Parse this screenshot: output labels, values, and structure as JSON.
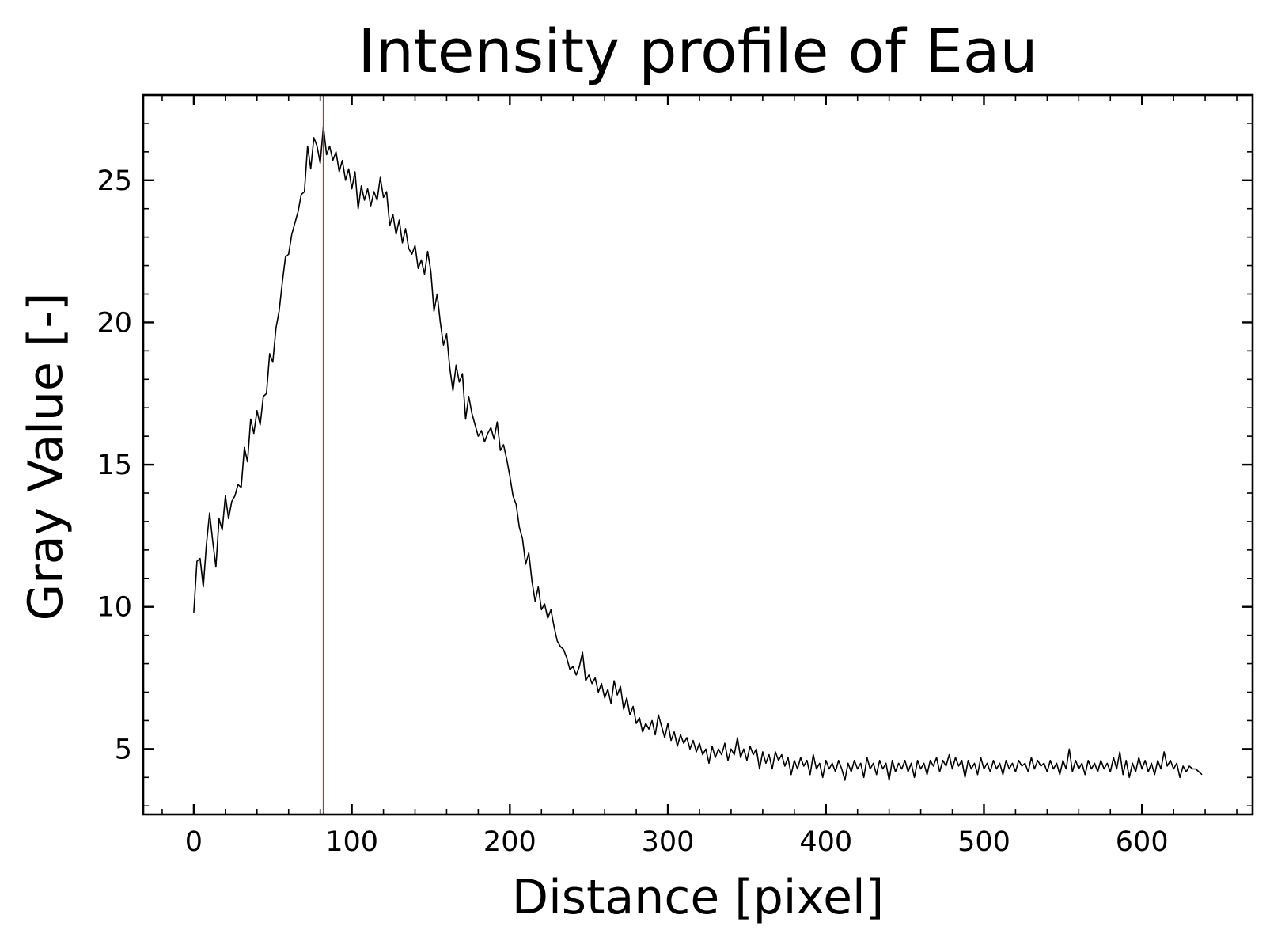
{
  "chart_data": {
    "type": "line",
    "title": "Intensity profile of Eau",
    "xlabel": "Distance [pixel]",
    "ylabel": "Gray Value [-]",
    "xlim": [
      -32,
      670
    ],
    "ylim": [
      2.7,
      28.0
    ],
    "x_ticks": [
      0,
      100,
      200,
      300,
      400,
      500,
      600
    ],
    "x_tick_labels": [
      "0",
      "100",
      "200",
      "300",
      "400",
      "500",
      "600"
    ],
    "x_minor_step": 20,
    "y_ticks": [
      5,
      10,
      15,
      20,
      25
    ],
    "y_tick_labels": [
      "5",
      "10",
      "15",
      "20",
      "25"
    ],
    "y_minor_step": 1,
    "ticks_direction": "in",
    "ticks_on_all_sides": true,
    "grid": false,
    "legend": "none",
    "marker_x": 82,
    "colors": {
      "line": "#000000",
      "marker": "#d62728"
    },
    "series": [
      {
        "profile_points": [
          [
            0,
            9.8
          ],
          [
            2,
            11.6
          ],
          [
            4,
            11.7
          ],
          [
            6,
            10.7
          ],
          [
            8,
            12.2
          ],
          [
            10,
            13.3
          ],
          [
            12,
            12.3
          ],
          [
            14,
            11.4
          ],
          [
            16,
            13.1
          ],
          [
            18,
            12.7
          ],
          [
            20,
            13.9
          ],
          [
            22,
            13.1
          ],
          [
            24,
            13.7
          ],
          [
            26,
            13.9
          ],
          [
            28,
            14.3
          ],
          [
            30,
            14.2
          ],
          [
            32,
            15.6
          ],
          [
            34,
            15.1
          ],
          [
            36,
            16.6
          ],
          [
            38,
            16.1
          ],
          [
            40,
            16.9
          ],
          [
            42,
            16.4
          ],
          [
            44,
            17.4
          ],
          [
            46,
            17.5
          ],
          [
            48,
            18.9
          ],
          [
            50,
            18.6
          ],
          [
            52,
            19.8
          ],
          [
            54,
            20.4
          ],
          [
            56,
            21.4
          ],
          [
            58,
            22.3
          ],
          [
            60,
            22.4
          ],
          [
            62,
            23.1
          ],
          [
            64,
            23.5
          ],
          [
            66,
            23.9
          ],
          [
            68,
            24.5
          ],
          [
            70,
            24.6
          ],
          [
            72,
            26.2
          ],
          [
            74,
            25.4
          ],
          [
            76,
            26.5
          ],
          [
            78,
            26.2
          ],
          [
            80,
            25.6
          ],
          [
            82,
            26.9
          ],
          [
            84,
            25.9
          ],
          [
            86,
            26.2
          ],
          [
            88,
            25.7
          ],
          [
            90,
            26.0
          ],
          [
            92,
            25.3
          ],
          [
            94,
            25.7
          ],
          [
            96,
            25.0
          ],
          [
            98,
            25.4
          ],
          [
            100,
            24.7
          ],
          [
            102,
            25.3
          ],
          [
            104,
            24.0
          ],
          [
            106,
            24.8
          ],
          [
            108,
            24.3
          ],
          [
            110,
            24.7
          ],
          [
            112,
            24.1
          ],
          [
            114,
            24.6
          ],
          [
            116,
            24.3
          ],
          [
            118,
            25.1
          ],
          [
            120,
            24.4
          ],
          [
            122,
            24.6
          ],
          [
            124,
            23.4
          ],
          [
            126,
            23.8
          ],
          [
            128,
            23.1
          ],
          [
            130,
            23.6
          ],
          [
            132,
            22.8
          ],
          [
            134,
            23.3
          ],
          [
            136,
            22.6
          ],
          [
            138,
            22.4
          ],
          [
            140,
            22.7
          ],
          [
            142,
            21.9
          ],
          [
            144,
            22.2
          ],
          [
            146,
            21.7
          ],
          [
            148,
            22.5
          ],
          [
            150,
            21.8
          ],
          [
            152,
            20.4
          ],
          [
            154,
            21.0
          ],
          [
            156,
            20.0
          ],
          [
            158,
            19.2
          ],
          [
            160,
            19.6
          ],
          [
            162,
            18.4
          ],
          [
            164,
            17.6
          ],
          [
            166,
            18.5
          ],
          [
            168,
            17.9
          ],
          [
            170,
            18.2
          ],
          [
            172,
            16.6
          ],
          [
            174,
            17.4
          ],
          [
            176,
            16.8
          ],
          [
            178,
            16.4
          ],
          [
            180,
            16.0
          ],
          [
            182,
            16.2
          ],
          [
            184,
            15.8
          ],
          [
            186,
            16.1
          ],
          [
            188,
            16.3
          ],
          [
            190,
            15.9
          ],
          [
            192,
            16.5
          ],
          [
            194,
            15.5
          ],
          [
            196,
            15.7
          ],
          [
            198,
            15.2
          ],
          [
            200,
            14.6
          ],
          [
            202,
            13.9
          ],
          [
            204,
            13.6
          ],
          [
            206,
            12.8
          ],
          [
            208,
            12.4
          ],
          [
            210,
            11.5
          ],
          [
            212,
            11.9
          ],
          [
            214,
            10.9
          ],
          [
            216,
            10.2
          ],
          [
            218,
            10.7
          ],
          [
            220,
            9.9
          ],
          [
            222,
            10.1
          ],
          [
            224,
            9.6
          ],
          [
            226,
            9.9
          ],
          [
            228,
            9.3
          ],
          [
            230,
            8.8
          ],
          [
            232,
            8.6
          ],
          [
            234,
            8.5
          ],
          [
            236,
            8.2
          ],
          [
            238,
            7.8
          ],
          [
            240,
            7.9
          ],
          [
            242,
            7.6
          ],
          [
            244,
            7.9
          ],
          [
            246,
            8.4
          ],
          [
            248,
            7.4
          ],
          [
            250,
            7.6
          ],
          [
            252,
            7.3
          ],
          [
            254,
            7.5
          ],
          [
            256,
            7.0
          ],
          [
            258,
            7.3
          ],
          [
            260,
            6.8
          ],
          [
            262,
            7.1
          ],
          [
            264,
            6.6
          ],
          [
            266,
            7.4
          ],
          [
            268,
            6.9
          ],
          [
            270,
            7.2
          ],
          [
            272,
            6.4
          ],
          [
            274,
            6.8
          ],
          [
            276,
            6.2
          ],
          [
            278,
            6.5
          ],
          [
            280,
            5.9
          ],
          [
            282,
            6.1
          ],
          [
            284,
            5.6
          ],
          [
            286,
            5.9
          ],
          [
            288,
            5.7
          ],
          [
            290,
            6.0
          ],
          [
            292,
            5.5
          ],
          [
            294,
            6.2
          ],
          [
            296,
            5.8
          ],
          [
            298,
            5.4
          ],
          [
            300,
            5.9
          ],
          [
            302,
            5.3
          ],
          [
            304,
            5.6
          ],
          [
            306,
            5.1
          ],
          [
            308,
            5.5
          ],
          [
            310,
            5.2
          ],
          [
            312,
            5.4
          ],
          [
            314,
            5.0
          ],
          [
            316,
            5.3
          ],
          [
            318,
            4.9
          ],
          [
            320,
            5.2
          ],
          [
            322,
            4.8
          ],
          [
            324,
            5.0
          ],
          [
            326,
            4.5
          ],
          [
            328,
            5.1
          ],
          [
            330,
            4.7
          ],
          [
            332,
            5.0
          ],
          [
            334,
            4.8
          ],
          [
            336,
            5.2
          ],
          [
            338,
            4.6
          ],
          [
            340,
            5.0
          ],
          [
            342,
            4.8
          ],
          [
            344,
            5.4
          ],
          [
            346,
            4.7
          ],
          [
            348,
            5.0
          ],
          [
            350,
            4.6
          ],
          [
            352,
            5.1
          ],
          [
            354,
            4.8
          ],
          [
            356,
            5.0
          ],
          [
            358,
            4.3
          ],
          [
            360,
            4.9
          ],
          [
            362,
            4.5
          ],
          [
            364,
            4.8
          ],
          [
            366,
            4.3
          ],
          [
            368,
            4.9
          ],
          [
            370,
            4.6
          ],
          [
            372,
            4.8
          ],
          [
            374,
            4.4
          ],
          [
            376,
            4.7
          ],
          [
            378,
            4.1
          ],
          [
            380,
            4.6
          ],
          [
            382,
            4.3
          ],
          [
            384,
            4.7
          ],
          [
            386,
            4.4
          ],
          [
            388,
            4.6
          ],
          [
            390,
            4.1
          ],
          [
            392,
            4.8
          ],
          [
            394,
            4.3
          ],
          [
            396,
            4.5
          ],
          [
            398,
            4.0
          ],
          [
            400,
            4.6
          ],
          [
            402,
            4.3
          ],
          [
            404,
            4.5
          ],
          [
            406,
            4.2
          ],
          [
            408,
            4.6
          ],
          [
            410,
            4.3
          ],
          [
            412,
            3.9
          ],
          [
            414,
            4.5
          ],
          [
            416,
            4.2
          ],
          [
            418,
            4.6
          ],
          [
            420,
            4.3
          ],
          [
            422,
            4.5
          ],
          [
            424,
            4.0
          ],
          [
            426,
            4.7
          ],
          [
            428,
            4.3
          ],
          [
            430,
            4.5
          ],
          [
            432,
            4.1
          ],
          [
            434,
            4.6
          ],
          [
            436,
            4.3
          ],
          [
            438,
            4.5
          ],
          [
            440,
            3.9
          ],
          [
            442,
            4.6
          ],
          [
            444,
            4.2
          ],
          [
            446,
            4.5
          ],
          [
            448,
            4.3
          ],
          [
            450,
            4.6
          ],
          [
            452,
            4.2
          ],
          [
            454,
            4.5
          ],
          [
            456,
            4.0
          ],
          [
            458,
            4.6
          ],
          [
            460,
            4.3
          ],
          [
            462,
            4.5
          ],
          [
            464,
            4.1
          ],
          [
            466,
            4.6
          ],
          [
            468,
            4.4
          ],
          [
            470,
            4.7
          ],
          [
            472,
            4.2
          ],
          [
            474,
            4.6
          ],
          [
            476,
            4.4
          ],
          [
            478,
            4.8
          ],
          [
            480,
            4.3
          ],
          [
            482,
            4.7
          ],
          [
            484,
            4.4
          ],
          [
            486,
            4.6
          ],
          [
            488,
            4.0
          ],
          [
            490,
            4.6
          ],
          [
            492,
            4.3
          ],
          [
            494,
            4.5
          ],
          [
            496,
            4.1
          ],
          [
            498,
            4.7
          ],
          [
            500,
            4.3
          ],
          [
            502,
            4.5
          ],
          [
            504,
            4.2
          ],
          [
            506,
            4.6
          ],
          [
            508,
            4.3
          ],
          [
            510,
            4.5
          ],
          [
            512,
            4.1
          ],
          [
            514,
            4.6
          ],
          [
            516,
            4.3
          ],
          [
            518,
            4.5
          ],
          [
            520,
            4.2
          ],
          [
            522,
            4.6
          ],
          [
            524,
            4.4
          ],
          [
            526,
            4.5
          ],
          [
            528,
            4.2
          ],
          [
            530,
            4.7
          ],
          [
            532,
            4.3
          ],
          [
            534,
            4.6
          ],
          [
            536,
            4.4
          ],
          [
            538,
            4.5
          ],
          [
            540,
            4.2
          ],
          [
            542,
            4.6
          ],
          [
            544,
            4.3
          ],
          [
            546,
            4.5
          ],
          [
            548,
            4.1
          ],
          [
            550,
            4.6
          ],
          [
            552,
            4.3
          ],
          [
            554,
            5.0
          ],
          [
            556,
            4.2
          ],
          [
            558,
            4.6
          ],
          [
            560,
            4.3
          ],
          [
            562,
            4.5
          ],
          [
            564,
            4.1
          ],
          [
            566,
            4.6
          ],
          [
            568,
            4.3
          ],
          [
            570,
            4.5
          ],
          [
            572,
            4.2
          ],
          [
            574,
            4.6
          ],
          [
            576,
            4.3
          ],
          [
            578,
            4.5
          ],
          [
            580,
            4.2
          ],
          [
            582,
            4.7
          ],
          [
            584,
            4.3
          ],
          [
            586,
            4.9
          ],
          [
            588,
            4.1
          ],
          [
            590,
            4.6
          ],
          [
            592,
            4.0
          ],
          [
            594,
            4.5
          ],
          [
            596,
            4.2
          ],
          [
            598,
            4.7
          ],
          [
            600,
            4.3
          ],
          [
            602,
            4.6
          ],
          [
            604,
            4.2
          ],
          [
            606,
            4.5
          ],
          [
            608,
            4.1
          ],
          [
            610,
            4.6
          ],
          [
            612,
            4.3
          ],
          [
            614,
            4.9
          ],
          [
            616,
            4.4
          ],
          [
            618,
            4.6
          ],
          [
            620,
            4.3
          ],
          [
            622,
            4.5
          ],
          [
            624,
            4.0
          ],
          [
            626,
            4.4
          ],
          [
            628,
            4.2
          ],
          [
            630,
            4.4
          ],
          [
            632,
            4.3
          ],
          [
            634,
            4.3
          ],
          [
            636,
            4.2
          ],
          [
            638,
            4.1
          ]
        ]
      }
    ]
  }
}
